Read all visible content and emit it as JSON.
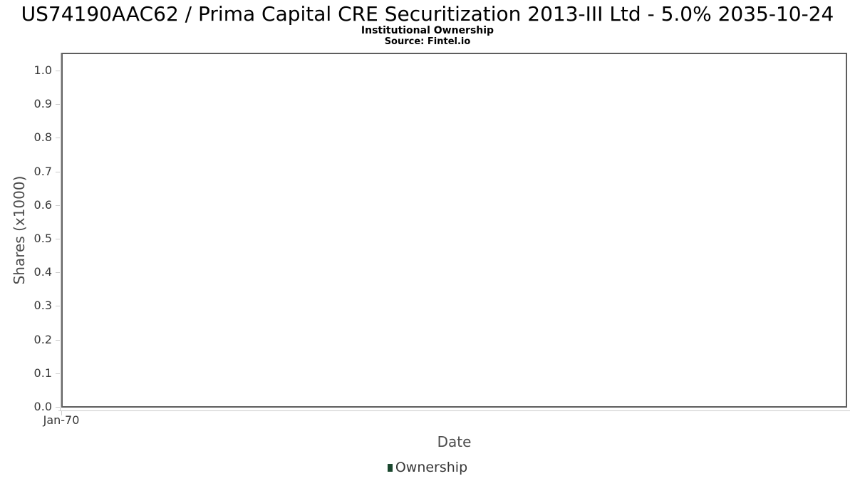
{
  "header": {
    "title": "US74190AAC62 / Prima Capital CRE Securitization 2013-III Ltd - 5.0% 2035-10-24",
    "subtitle": "Institutional Ownership",
    "source": "Source: Fintel.io"
  },
  "chart_data": {
    "type": "line",
    "title": "US74190AAC62 / Prima Capital CRE Securitization 2013-III Ltd - 5.0% 2035-10-24",
    "subtitle": "Institutional Ownership",
    "source": "Source: Fintel.io",
    "xlabel": "Date",
    "ylabel": "Shares (x1000)",
    "x_ticks": [
      "Jan-70"
    ],
    "y_tick_labels": [
      "0.0",
      "0.1",
      "0.2",
      "0.3",
      "0.4",
      "0.5",
      "0.6",
      "0.7",
      "0.8",
      "0.9",
      "1.0"
    ],
    "ylim": [
      0.0,
      1.055
    ],
    "grid": true,
    "legend_position": "bottom",
    "series": [
      {
        "name": "Ownership",
        "color": "#1a472e",
        "x": [],
        "values": []
      }
    ]
  },
  "colors": {
    "title_text": "#000000",
    "plot_border": "#5e5e5e",
    "gridline": "#e9e9e9",
    "axis_line": "#cccccc",
    "tick_label": "#383838",
    "axis_title": "#4c4c4c",
    "legend_marker": "#1a472e"
  }
}
